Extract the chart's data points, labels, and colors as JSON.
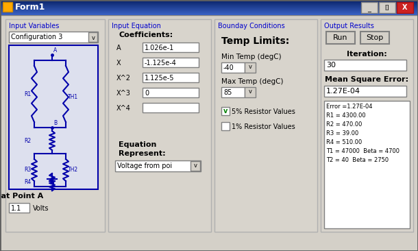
{
  "title": "Form1",
  "bg_color": "#d4d0c8",
  "titlebar_color": "#0a246a",
  "titlebar_text_color": "#ffffff",
  "window_border_color": "#808080",
  "panel_bg": "#d4d0c8",
  "panel_border": "#a0a0a0",
  "section_label_color": "#0000cc",
  "input_variables": {
    "title": "Input Variables",
    "dropdown": "Configuration 3",
    "circuit_label": "V at Point A",
    "circuit_value": "1.1",
    "circuit_unit": "Volts"
  },
  "input_equation": {
    "title": "Input Equation",
    "coefficients_label": "Coefficients:",
    "coeffs": [
      [
        "A",
        "1.026e-1"
      ],
      [
        "X",
        "-1.125e-4"
      ],
      [
        "X^2",
        "1.125e-5"
      ],
      [
        "X^3",
        "0"
      ],
      [
        "X^4",
        ""
      ]
    ],
    "equation_label": "Equation\nRepresent:",
    "equation_dropdown": "Voltage from poi"
  },
  "boundary_conditions": {
    "title": "Bounday Conditions",
    "temp_limits_label": "Temp Limits:",
    "min_temp_label": "Min Temp (degC)",
    "min_temp_value": "-40",
    "max_temp_label": "Max Temp (degC)",
    "max_temp_value": "85",
    "checkbox1_label": "5% Resistor Values",
    "checkbox1_checked": true,
    "checkbox2_label": "1% Resistor Values",
    "checkbox2_checked": false
  },
  "output_results": {
    "title": "Output Results",
    "btn_run": "Run",
    "btn_stop": "Stop",
    "iteration_label": "Iteration:",
    "iteration_value": "30",
    "mse_label": "Mean Square Error:",
    "mse_value": "1.27E-04",
    "output_lines": [
      "Error =1.27E-04",
      "R1 = 4300.00",
      "R2 = 470.00",
      "R3 = 39.00",
      "R4 = 510.00",
      "T1 = 47000  Beta = 4700",
      "T2 = 40  Beta = 2750"
    ]
  }
}
